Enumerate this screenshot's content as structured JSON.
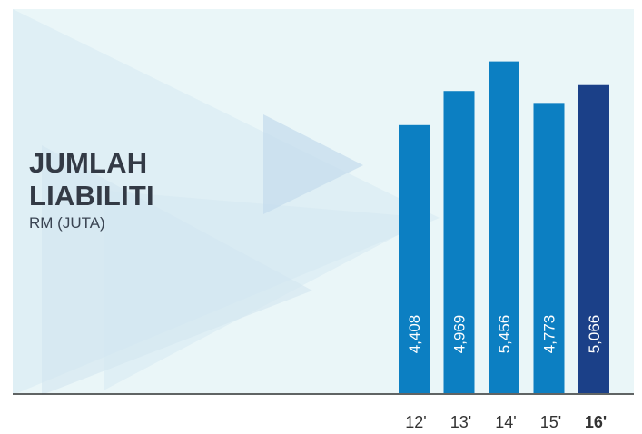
{
  "heading": {
    "line1": "JUMLAH",
    "line2": "LIABILITI",
    "unit": "RM (JUTA)"
  },
  "chart_data": {
    "type": "bar",
    "categories": [
      "12'",
      "13'",
      "14'",
      "15'",
      "16'"
    ],
    "values": [
      4408,
      4969,
      5456,
      4773,
      5066
    ],
    "value_labels": [
      "4,408",
      "4,969",
      "5,456",
      "4,773",
      "5,066"
    ],
    "highlight_index": 4,
    "grid": false,
    "colors": {
      "bar": "#0c7fc2",
      "highlight": "#1b4088",
      "value_text": "#ffffff",
      "axis": "#333333",
      "category_text": "#333333"
    }
  }
}
